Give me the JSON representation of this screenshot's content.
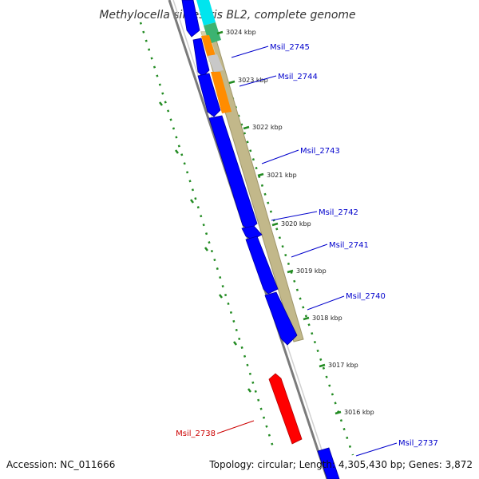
{
  "title": "Methylocella silvestris BL2, complete genome",
  "accession": "Accession: NC_011666",
  "summary": "Topology: circular; Length: 4,305,430 bp; Genes: 3,872",
  "ticks": [
    "3024 kbp",
    "3023 kbp",
    "3022 kbp",
    "3021 kbp",
    "3020 kbp",
    "3019 kbp",
    "3018 kbp",
    "3017 kbp",
    "3016 kbp"
  ],
  "genes": [
    {
      "label": "Msil_2745",
      "color": "#0000cc"
    },
    {
      "label": "Msil_2744",
      "color": "#0000cc"
    },
    {
      "label": "Msil_2743",
      "color": "#0000cc"
    },
    {
      "label": "Msil_2742",
      "color": "#0000cc"
    },
    {
      "label": "Msil_2741",
      "color": "#0000cc"
    },
    {
      "label": "Msil_2740",
      "color": "#0000cc"
    },
    {
      "label": "Msil_2738",
      "color": "#cc0000"
    },
    {
      "label": "Msil_2737",
      "color": "#0000cc"
    }
  ],
  "colors": {
    "forward_cds": "#0000ff",
    "reverse_cds": "#ff0000",
    "backbone": "#7a7a7a",
    "feature_band": "#c2b88a",
    "tick": "#228b22",
    "dotted_ring": "#228b22"
  }
}
